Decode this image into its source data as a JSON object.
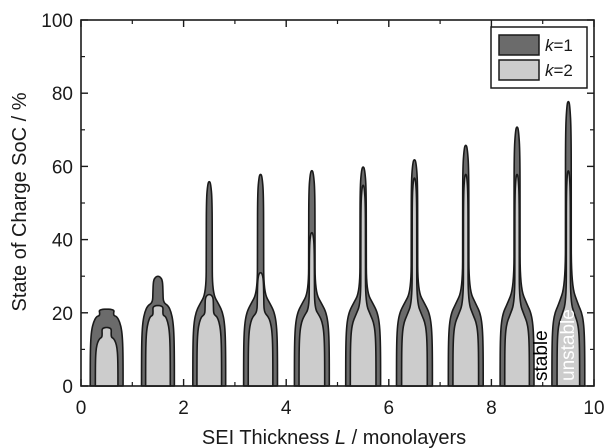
{
  "chart_data": {
    "type": "area",
    "xlabel": "SEI Thickness",
    "xlabel_var": "L",
    "xlabel_unit": "monolayers",
    "ylabel": "State of Charge SoC",
    "ylabel_unit": "%",
    "xlim": [
      0,
      10
    ],
    "ylim": [
      0,
      100
    ],
    "xticks": [
      "0",
      "2",
      "4",
      "6",
      "8",
      "10"
    ],
    "yticks": [
      "0",
      "20",
      "40",
      "60",
      "80",
      "100"
    ],
    "grid": false,
    "legend_position": "top-right",
    "annotations": [
      {
        "text": "stable",
        "orientation": "vertical",
        "color": "#000000"
      },
      {
        "text": "unstable",
        "orientation": "vertical",
        "color": "#ffffff"
      }
    ],
    "centers": [
      0.5,
      1.5,
      2.5,
      3.5,
      4.5,
      5.5,
      6.5,
      7.5,
      8.5,
      9.5
    ],
    "series": [
      {
        "name": "k=1",
        "var": "k",
        "eq": "=1",
        "color": "#6b6b6b",
        "peak": [
          21,
          30,
          56,
          58,
          59,
          60,
          62,
          66,
          71,
          78
        ],
        "shoulder": [
          19,
          22,
          22,
          22,
          22,
          22,
          22,
          22,
          22,
          22
        ],
        "base_halfwidth": [
          0.32,
          0.32,
          0.32,
          0.33,
          0.34,
          0.34,
          0.35,
          0.34,
          0.33,
          0.32
        ]
      },
      {
        "name": "k=2",
        "var": "k",
        "eq": "=2",
        "color": "#cccccc",
        "peak": [
          16,
          22,
          25,
          31,
          42,
          55,
          57,
          58,
          58,
          59
        ],
        "shoulder": [
          13,
          19,
          19,
          19,
          19,
          19,
          19,
          19,
          19,
          19
        ],
        "base_halfwidth": [
          0.22,
          0.24,
          0.24,
          0.24,
          0.25,
          0.25,
          0.25,
          0.25,
          0.24,
          0.22
        ]
      }
    ]
  }
}
